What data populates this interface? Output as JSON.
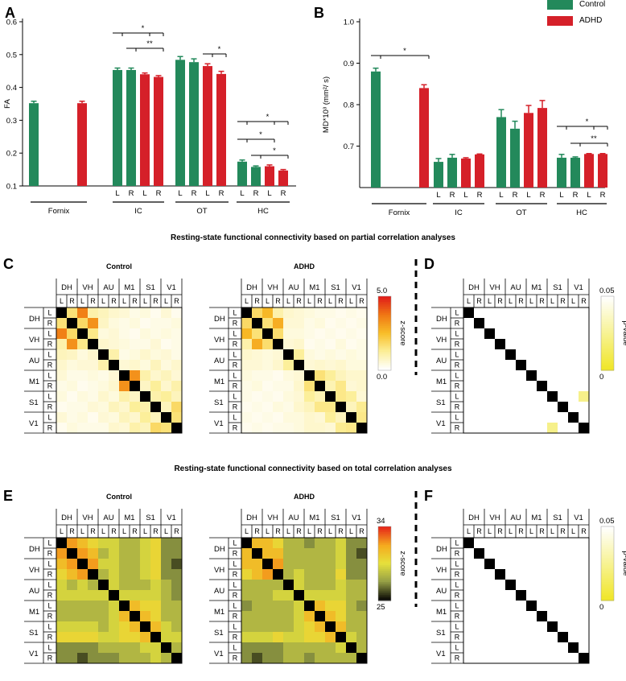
{
  "panels": {
    "A": "A",
    "B": "B",
    "C": "C",
    "D": "D",
    "E": "E",
    "F": "F"
  },
  "legend": {
    "control": "Control",
    "adhd": "ADHD",
    "control_color": "#23895b",
    "adhd_color": "#d52029"
  },
  "chart_data": [
    {
      "type": "bar",
      "id": "A",
      "ylabel": "FA",
      "ylim": [
        0.1,
        0.6
      ],
      "yticks": [
        "0.1",
        "0.2",
        "0.3",
        "0.4",
        "0.5",
        "0.6"
      ],
      "ytick_values": [
        0.1,
        0.2,
        0.3,
        0.4,
        0.5,
        0.6
      ],
      "series": [
        {
          "name": "Control",
          "color": "#23895b"
        },
        {
          "name": "ADHD",
          "color": "#d52029"
        }
      ],
      "groups": [
        {
          "name": "Fornix",
          "bars": [
            {
              "side": "",
              "group": "Control",
              "value": 0.352,
              "err": 0.006
            },
            {
              "side": "",
              "group": "ADHD",
              "value": 0.352,
              "err": 0.006
            }
          ]
        },
        {
          "name": "IC",
          "bars": [
            {
              "side": "L",
              "group": "Control",
              "value": 0.453,
              "err": 0.006
            },
            {
              "side": "R",
              "group": "Control",
              "value": 0.453,
              "err": 0.006
            },
            {
              "side": "L",
              "group": "ADHD",
              "value": 0.44,
              "err": 0.004
            },
            {
              "side": "R",
              "group": "ADHD",
              "value": 0.432,
              "err": 0.004
            }
          ]
        },
        {
          "name": "OT",
          "bars": [
            {
              "side": "L",
              "group": "Control",
              "value": 0.484,
              "err": 0.01
            },
            {
              "side": "R",
              "group": "Control",
              "value": 0.477,
              "err": 0.01
            },
            {
              "side": "L",
              "group": "ADHD",
              "value": 0.465,
              "err": 0.007
            },
            {
              "side": "R",
              "group": "ADHD",
              "value": 0.441,
              "err": 0.008
            }
          ]
        },
        {
          "name": "HC",
          "bars": [
            {
              "side": "L",
              "group": "Control",
              "value": 0.174,
              "err": 0.005
            },
            {
              "side": "R",
              "group": "Control",
              "value": 0.158,
              "err": 0.003
            },
            {
              "side": "L",
              "group": "ADHD",
              "value": 0.16,
              "err": 0.004
            },
            {
              "side": "R",
              "group": "ADHD",
              "value": 0.147,
              "err": 0.003
            }
          ]
        }
      ],
      "significance": [
        {
          "label": "*",
          "group": "IC",
          "from": 0,
          "to": 2,
          "alt": "to3"
        },
        {
          "label": "**",
          "group": "IC",
          "from": 1,
          "to": 3
        },
        {
          "label": "*",
          "group": "OT",
          "from": 2,
          "to": 3
        },
        {
          "label": "*",
          "group": "HC",
          "from": 0,
          "to": 2,
          "alt": "to3"
        },
        {
          "label": "*",
          "group": "HC",
          "from": 0,
          "to": 2
        },
        {
          "label": "*",
          "group": "HC",
          "from": 1,
          "to": 3
        }
      ]
    },
    {
      "type": "bar",
      "id": "B",
      "ylabel": "MD*10³ (mm²/ s)",
      "ylim": [
        0.6,
        1.0
      ],
      "yticks": [
        "0.7",
        "0.8",
        "0.9",
        "1.0"
      ],
      "ytick_values": [
        0.7,
        0.8,
        0.9,
        1.0
      ],
      "groups": [
        {
          "name": "Fornix",
          "bars": [
            {
              "side": "",
              "group": "Control",
              "value": 0.88,
              "err": 0.008
            },
            {
              "side": "",
              "group": "ADHD",
              "value": 0.84,
              "err": 0.008
            }
          ]
        },
        {
          "name": "IC",
          "bars": [
            {
              "side": "L",
              "group": "Control",
              "value": 0.662,
              "err": 0.008
            },
            {
              "side": "R",
              "group": "Control",
              "value": 0.672,
              "err": 0.008
            },
            {
              "side": "L",
              "group": "ADHD",
              "value": 0.67,
              "err": 0.002
            },
            {
              "side": "R",
              "group": "ADHD",
              "value": 0.68,
              "err": 0.001
            }
          ]
        },
        {
          "name": "OT",
          "bars": [
            {
              "side": "L",
              "group": "Control",
              "value": 0.77,
              "err": 0.018
            },
            {
              "side": "R",
              "group": "Control",
              "value": 0.742,
              "err": 0.018
            },
            {
              "side": "L",
              "group": "ADHD",
              "value": 0.78,
              "err": 0.018
            },
            {
              "side": "R",
              "group": "ADHD",
              "value": 0.792,
              "err": 0.018
            }
          ]
        },
        {
          "name": "HC",
          "bars": [
            {
              "side": "L",
              "group": "Control",
              "value": 0.672,
              "err": 0.008
            },
            {
              "side": "R",
              "group": "Control",
              "value": 0.672,
              "err": 0.002
            },
            {
              "side": "L",
              "group": "ADHD",
              "value": 0.681,
              "err": 0.001
            },
            {
              "side": "R",
              "group": "ADHD",
              "value": 0.681,
              "err": 0.001
            }
          ]
        }
      ],
      "significance": [
        {
          "label": "*",
          "group": "Fornix",
          "from": 0,
          "to": 1
        },
        {
          "label": "*",
          "group": "HC",
          "from": 0,
          "to": 2,
          "alt": "to3"
        },
        {
          "label": "**",
          "group": "HC",
          "from": 1,
          "to": 3
        }
      ]
    },
    {
      "type": "heatmap",
      "id": "C-control",
      "title": "Control",
      "colorbar_range": [
        0.0,
        5.0
      ],
      "cells": [
        [
          5.5,
          1.6,
          3.6,
          1.0,
          0.8,
          0.6,
          0.5,
          0.3,
          0.4,
          0.2,
          0.5,
          0.2
        ],
        [
          1.6,
          5.5,
          1.8,
          3.3,
          0.7,
          0.4,
          0.3,
          0.4,
          0.2,
          0.3,
          0.3,
          0.4
        ],
        [
          3.6,
          1.8,
          5.5,
          1.4,
          0.4,
          0.5,
          0.3,
          0.2,
          0.4,
          0.3,
          0.4,
          0.3
        ],
        [
          1.0,
          3.3,
          1.4,
          5.5,
          0.6,
          0.5,
          0.4,
          0.3,
          0.3,
          0.5,
          0.2,
          0.3
        ],
        [
          0.8,
          0.7,
          0.4,
          0.6,
          5.5,
          1.0,
          0.3,
          0.4,
          0.6,
          0.4,
          0.5,
          0.3
        ],
        [
          0.6,
          0.4,
          0.5,
          0.5,
          1.0,
          5.5,
          0.5,
          0.6,
          0.4,
          0.8,
          0.4,
          0.6
        ],
        [
          0.5,
          0.3,
          0.3,
          0.4,
          0.3,
          0.5,
          5.5,
          3.3,
          1.0,
          0.6,
          0.8,
          0.5
        ],
        [
          0.3,
          0.4,
          0.2,
          0.3,
          0.4,
          0.6,
          3.3,
          5.5,
          0.7,
          1.2,
          0.6,
          1.0
        ],
        [
          0.4,
          0.2,
          0.4,
          0.3,
          0.6,
          0.4,
          1.0,
          0.7,
          5.5,
          1.0,
          1.2,
          0.8
        ],
        [
          0.2,
          0.3,
          0.3,
          0.5,
          0.4,
          0.8,
          0.6,
          1.2,
          1.0,
          5.5,
          0.8,
          1.8
        ],
        [
          0.5,
          0.3,
          0.4,
          0.2,
          0.5,
          0.4,
          0.8,
          0.6,
          1.2,
          0.8,
          5.5,
          1.6
        ],
        [
          0.2,
          0.4,
          0.3,
          0.3,
          0.3,
          0.6,
          0.5,
          1.0,
          0.8,
          1.8,
          1.6,
          5.5
        ]
      ]
    },
    {
      "type": "heatmap",
      "id": "C-adhd",
      "title": "ADHD",
      "colorbar_range": [
        0.0,
        5.0
      ],
      "cells": [
        [
          5.5,
          1.8,
          2.6,
          1.0,
          0.6,
          0.5,
          0.4,
          0.3,
          0.3,
          0.2,
          0.3,
          0.2
        ],
        [
          1.8,
          5.5,
          1.6,
          2.8,
          0.5,
          0.5,
          0.3,
          0.4,
          0.2,
          0.3,
          0.2,
          0.3
        ],
        [
          2.6,
          1.6,
          5.5,
          1.7,
          0.4,
          0.4,
          0.3,
          0.2,
          0.3,
          0.2,
          0.3,
          0.2
        ],
        [
          1.0,
          2.8,
          1.7,
          5.5,
          0.5,
          0.6,
          0.2,
          0.3,
          0.2,
          0.4,
          0.2,
          0.3
        ],
        [
          0.6,
          0.5,
          0.4,
          0.5,
          5.5,
          1.2,
          0.4,
          0.3,
          0.4,
          0.3,
          0.4,
          0.3
        ],
        [
          0.5,
          0.5,
          0.4,
          0.6,
          1.2,
          5.5,
          0.5,
          0.6,
          0.5,
          0.6,
          0.4,
          0.4
        ],
        [
          0.4,
          0.3,
          0.3,
          0.2,
          0.4,
          0.5,
          5.5,
          1.6,
          1.2,
          0.8,
          0.6,
          0.6
        ],
        [
          0.3,
          0.4,
          0.2,
          0.3,
          0.3,
          0.6,
          1.6,
          5.5,
          0.9,
          1.4,
          0.5,
          0.6
        ],
        [
          0.3,
          0.2,
          0.3,
          0.2,
          0.4,
          0.5,
          1.2,
          0.9,
          5.5,
          1.4,
          1.2,
          0.5
        ],
        [
          0.2,
          0.3,
          0.2,
          0.4,
          0.3,
          0.6,
          0.8,
          1.4,
          1.4,
          5.5,
          0.8,
          1.3
        ],
        [
          0.3,
          0.2,
          0.3,
          0.2,
          0.4,
          0.4,
          0.6,
          0.5,
          1.2,
          0.8,
          5.5,
          1.4
        ],
        [
          0.2,
          0.3,
          0.2,
          0.3,
          0.3,
          0.4,
          0.6,
          0.6,
          0.5,
          1.3,
          1.4,
          5.5
        ]
      ]
    },
    {
      "type": "heatmap",
      "id": "D",
      "title": "",
      "colorbar_range": [
        0,
        0.05
      ],
      "colorbar_label": "p-value",
      "note": "only diagonal filled; two cells with p below threshold",
      "highlight": [
        [
          8,
          11,
          0.03
        ],
        [
          11,
          8,
          0.03
        ]
      ]
    },
    {
      "type": "heatmap",
      "id": "E-control",
      "title": "Control",
      "colorbar_range": [
        25,
        34
      ],
      "cells": [
        [
          35,
          32,
          31,
          30,
          29,
          29,
          28,
          28,
          29,
          30,
          27,
          27
        ],
        [
          32,
          35,
          32,
          31,
          28,
          29,
          28,
          28,
          29,
          30,
          27,
          27
        ],
        [
          31,
          32,
          35,
          32,
          29,
          29,
          28,
          28,
          29,
          30,
          27,
          26
        ],
        [
          30,
          31,
          32,
          35,
          28,
          29,
          28,
          28,
          29,
          30,
          27,
          27
        ],
        [
          29,
          28,
          29,
          28,
          35,
          29,
          28,
          28,
          28,
          29,
          28,
          27
        ],
        [
          29,
          29,
          29,
          29,
          29,
          35,
          29,
          29,
          29,
          29,
          28,
          27
        ],
        [
          28,
          28,
          28,
          28,
          28,
          29,
          35,
          31,
          30,
          30,
          28,
          28
        ],
        [
          28,
          28,
          28,
          28,
          28,
          29,
          31,
          35,
          31,
          30,
          28,
          28
        ],
        [
          29,
          29,
          29,
          29,
          28,
          29,
          30,
          31,
          35,
          31,
          29,
          28
        ],
        [
          30,
          30,
          30,
          30,
          29,
          29,
          30,
          30,
          31,
          35,
          29,
          29
        ],
        [
          27,
          27,
          27,
          27,
          28,
          28,
          28,
          28,
          29,
          29,
          35,
          28
        ],
        [
          27,
          27,
          26,
          27,
          27,
          27,
          28,
          28,
          28,
          29,
          28,
          35
        ]
      ]
    },
    {
      "type": "heatmap",
      "id": "E-adhd",
      "title": "ADHD",
      "colorbar_range": [
        25,
        34
      ],
      "cells": [
        [
          35,
          31,
          31,
          30,
          28,
          28,
          27,
          28,
          28,
          29,
          27,
          27
        ],
        [
          31,
          35,
          31,
          31,
          28,
          28,
          28,
          28,
          28,
          29,
          27,
          26
        ],
        [
          31,
          31,
          35,
          32,
          28,
          28,
          28,
          28,
          28,
          29,
          27,
          27
        ],
        [
          30,
          31,
          32,
          35,
          28,
          29,
          28,
          28,
          28,
          30,
          27,
          27
        ],
        [
          28,
          28,
          28,
          28,
          35,
          29,
          28,
          28,
          28,
          29,
          28,
          28
        ],
        [
          28,
          28,
          28,
          29,
          29,
          35,
          29,
          29,
          29,
          29,
          28,
          28
        ],
        [
          27,
          28,
          28,
          28,
          28,
          29,
          35,
          31,
          30,
          30,
          28,
          27
        ],
        [
          28,
          28,
          28,
          28,
          28,
          29,
          31,
          35,
          31,
          30,
          28,
          28
        ],
        [
          28,
          28,
          28,
          28,
          28,
          29,
          30,
          31,
          35,
          31,
          28,
          28
        ],
        [
          29,
          29,
          29,
          30,
          29,
          29,
          30,
          30,
          31,
          35,
          29,
          28
        ],
        [
          27,
          27,
          27,
          27,
          28,
          28,
          28,
          28,
          28,
          29,
          35,
          28
        ],
        [
          27,
          26,
          27,
          27,
          28,
          28,
          27,
          28,
          28,
          28,
          28,
          35
        ]
      ]
    },
    {
      "type": "heatmap",
      "id": "F",
      "title": "",
      "colorbar_range": [
        0,
        0.05
      ],
      "colorbar_label": "p-value",
      "note": "only diagonal filled"
    }
  ],
  "matrix": {
    "regions": [
      "DH",
      "VH",
      "AU",
      "M1",
      "S1",
      "V1"
    ],
    "sides": [
      "L",
      "R"
    ]
  },
  "headings": {
    "partial": "Resting-state functional connectivity based on partial correlation analyses",
    "total": "Resting-state functional connectivity based on total correlation analyses"
  },
  "colorbars": {
    "c_top": "5.0",
    "c_bottom": "0.0",
    "c_label": "z-score",
    "d_top": "0.05",
    "d_bottom": "0",
    "d_label": "p-value",
    "e_top": "34",
    "e_bottom": "25",
    "e_label": "z-score",
    "f_top": "0.05",
    "f_bottom": "0",
    "f_label": "p-value"
  }
}
